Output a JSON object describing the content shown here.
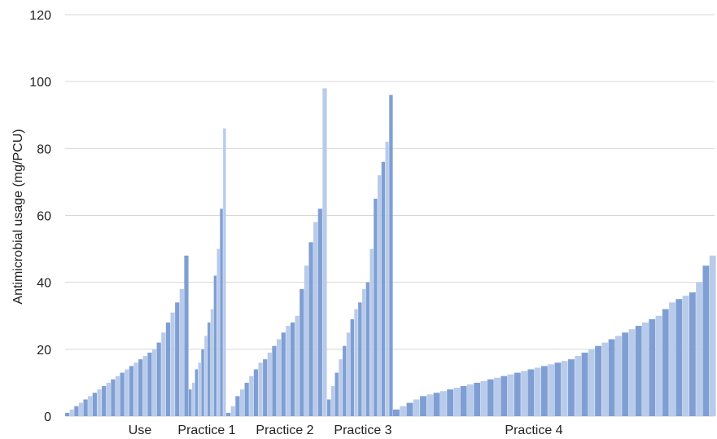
{
  "chart_data": {
    "type": "bar",
    "title": "",
    "xlabel": "",
    "ylabel": "Antimicrobial usage (mg/PCU)",
    "ylim": [
      0,
      120
    ],
    "yticks": [
      0,
      20,
      40,
      60,
      80,
      100,
      120
    ],
    "grid": true,
    "legend": "none",
    "colors": {
      "bar_a": "#7f9fd4",
      "bar_b": "#b9cbea",
      "grid": "#d6d6d6"
    },
    "groups": [
      {
        "name": "Use",
        "values": [
          1,
          2,
          3,
          4,
          5,
          6,
          7,
          8,
          9,
          10,
          11,
          12,
          13,
          14,
          15,
          16,
          17,
          18,
          19,
          20,
          22,
          25,
          28,
          31,
          34,
          38,
          48
        ]
      },
      {
        "name": "Practice 1",
        "values": [
          8,
          10,
          14,
          16,
          20,
          24,
          28,
          32,
          42,
          50,
          62,
          86
        ]
      },
      {
        "name": "Practice 2",
        "values": [
          1,
          3,
          6,
          8,
          10,
          12,
          14,
          16,
          17,
          19,
          21,
          23,
          25,
          27,
          28,
          30,
          38,
          45,
          52,
          58,
          62,
          98
        ]
      },
      {
        "name": "Practice 3",
        "values": [
          5,
          9,
          13,
          17,
          21,
          25,
          29,
          32,
          34,
          38,
          40,
          50,
          65,
          72,
          76,
          82,
          96
        ]
      },
      {
        "name": "Practice 4",
        "values": [
          2,
          3,
          4,
          5,
          6,
          6.5,
          7,
          7.5,
          8,
          8.5,
          9,
          9.5,
          10,
          10.5,
          11,
          11.5,
          12,
          12.5,
          13,
          13.5,
          14,
          14.5,
          15,
          15.5,
          16,
          16.5,
          17,
          18,
          19,
          20,
          21,
          22,
          23,
          24,
          25,
          26,
          27,
          28,
          29,
          30,
          32,
          34,
          35,
          36,
          37,
          40,
          45,
          48
        ]
      }
    ]
  }
}
